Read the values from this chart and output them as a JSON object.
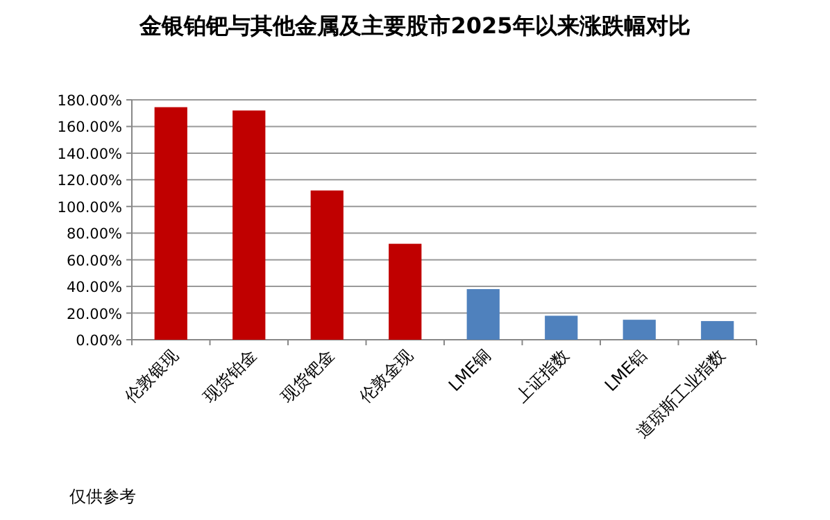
{
  "chart_data": {
    "type": "bar",
    "title": "金银铂钯与其他金属及主要股市2025年以来涨跌幅对比",
    "categories": [
      "伦敦银现",
      "现货铂金",
      "现货钯金",
      "伦敦金现",
      "LME铜",
      "上证指数",
      "LME铝",
      "道琼斯工业指数"
    ],
    "values": [
      174.5,
      172,
      112,
      72,
      38,
      18,
      15,
      14
    ],
    "colors": [
      "#c00000",
      "#c00000",
      "#c00000",
      "#c00000",
      "#4f81bd",
      "#4f81bd",
      "#4f81bd",
      "#4f81bd"
    ],
    "ylim": [
      0,
      180
    ],
    "yticks": [
      {
        "value": 0,
        "label": "0.00%"
      },
      {
        "value": 20,
        "label": "20.00%"
      },
      {
        "value": 40,
        "label": "40.00%"
      },
      {
        "value": 60,
        "label": "60.00%"
      },
      {
        "value": 80,
        "label": "80.00%"
      },
      {
        "value": 100,
        "label": "100.00%"
      },
      {
        "value": 120,
        "label": "120.00%"
      },
      {
        "value": 140,
        "label": "140.00%"
      },
      {
        "value": 160,
        "label": "160.00%"
      },
      {
        "value": 180,
        "label": "180.00%"
      }
    ],
    "grid": "y",
    "annotations": [
      "仅供参考"
    ]
  }
}
